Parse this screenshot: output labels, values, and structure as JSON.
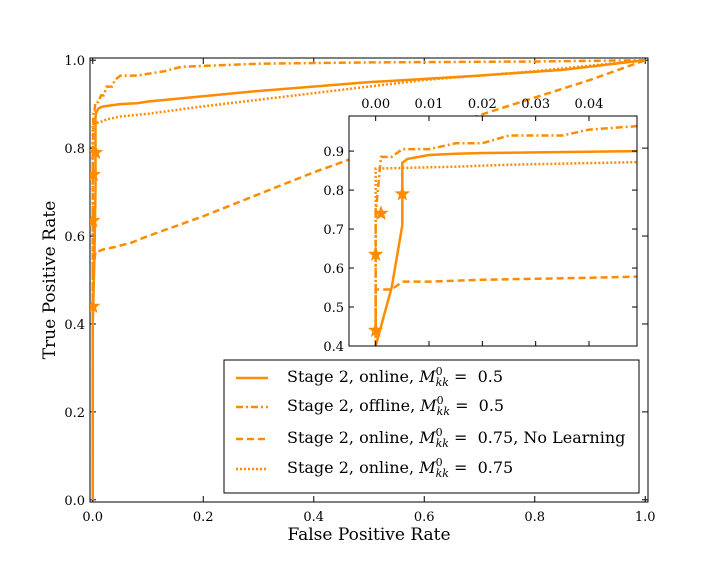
{
  "chart_data": {
    "type": "line",
    "title": "",
    "xlabel": "False Positive Rate",
    "ylabel": "True Positive Rate",
    "xlim": [
      -0.005,
      1.005
    ],
    "ylim": [
      -0.005,
      1.005
    ],
    "xticks": [
      "0.0",
      "0.2",
      "0.4",
      "0.6",
      "0.8",
      "1.0"
    ],
    "yticks": [
      "0.0",
      "0.2",
      "0.4",
      "0.6",
      "0.8",
      "1.0"
    ],
    "grid": false,
    "legend_position": "lower-right",
    "accent_color": "#ff8c00",
    "series": [
      {
        "name": "Stage 2, online, M = 0.5",
        "legend": {
          "prefix": "Stage 2, online, ",
          "sym": "M",
          "sup": "0",
          "sub": "kk",
          "suffix": " =  0.5"
        },
        "style": "solid",
        "x": [
          0.0,
          0.0,
          0.003,
          0.005,
          0.005,
          0.006,
          0.01,
          0.015,
          0.02,
          0.05,
          0.08,
          0.1,
          0.15,
          0.3,
          0.5,
          0.7,
          0.85,
          1.0
        ],
        "y": [
          0.0,
          0.4,
          0.55,
          0.71,
          0.87,
          0.88,
          0.89,
          0.893,
          0.895,
          0.9,
          0.902,
          0.906,
          0.912,
          0.93,
          0.95,
          0.965,
          0.978,
          1.0
        ]
      },
      {
        "name": "Stage 2, offline, M = 0.5",
        "legend": {
          "prefix": "Stage 2, offline, ",
          "sym": "M",
          "sup": "0",
          "sub": "kk",
          "suffix": " =  0.5"
        },
        "style": "dashdot",
        "x": [
          0.0,
          0.0,
          0.0,
          0.001,
          0.003,
          0.005,
          0.01,
          0.015,
          0.02,
          0.025,
          0.035,
          0.04,
          0.05,
          0.08,
          0.13,
          0.16,
          0.3,
          0.5,
          0.8,
          1.0
        ],
        "y": [
          0.0,
          0.44,
          0.74,
          0.885,
          0.885,
          0.905,
          0.905,
          0.92,
          0.92,
          0.94,
          0.94,
          0.955,
          0.965,
          0.965,
          0.975,
          0.985,
          0.992,
          0.995,
          0.997,
          1.0
        ]
      },
      {
        "name": "Stage 2, online, M = 0.75, No Learning",
        "legend": {
          "prefix": "Stage 2, online, ",
          "sym": "M",
          "sup": "0",
          "sub": "kk",
          "suffix": " =  0.75, No Learning"
        },
        "style": "dashed",
        "x": [
          0.0,
          0.0,
          0.0,
          0.003,
          0.005,
          0.01,
          0.02,
          0.04,
          0.07,
          0.1,
          0.2,
          0.3,
          0.4,
          0.5,
          0.6,
          0.7,
          0.8,
          0.9,
          1.0
        ],
        "y": [
          0.0,
          0.4,
          0.545,
          0.545,
          0.565,
          0.565,
          0.57,
          0.575,
          0.585,
          0.6,
          0.645,
          0.695,
          0.745,
          0.79,
          0.835,
          0.875,
          0.915,
          0.955,
          1.0
        ]
      },
      {
        "name": "Stage 2, online, M = 0.75",
        "legend": {
          "prefix": "Stage 2, online, ",
          "sym": "M",
          "sup": "0",
          "sub": "kk",
          "suffix": " =  0.75"
        },
        "style": "dotted",
        "x": [
          0.0,
          0.0,
          0.0,
          0.015,
          0.025,
          0.05,
          0.1,
          0.2,
          0.4,
          0.6,
          0.8,
          1.0
        ],
        "y": [
          0.0,
          0.7,
          0.855,
          0.86,
          0.865,
          0.872,
          0.878,
          0.895,
          0.925,
          0.955,
          0.975,
          1.0
        ]
      }
    ],
    "markers": {
      "symbol": "star",
      "points": [
        [
          0.0,
          0.44
        ],
        [
          0.0,
          0.635
        ],
        [
          0.001,
          0.74
        ],
        [
          0.005,
          0.79
        ]
      ]
    },
    "inset": {
      "xlim": [
        -0.005,
        0.049
      ],
      "ylim": [
        0.4,
        0.99
      ],
      "xticks": [
        "0.00",
        "0.01",
        "0.02",
        "0.03",
        "0.04"
      ],
      "yticks": [
        "0.4",
        "0.5",
        "0.6",
        "0.7",
        "0.8",
        "0.9"
      ],
      "xtick_position": "top"
    }
  }
}
